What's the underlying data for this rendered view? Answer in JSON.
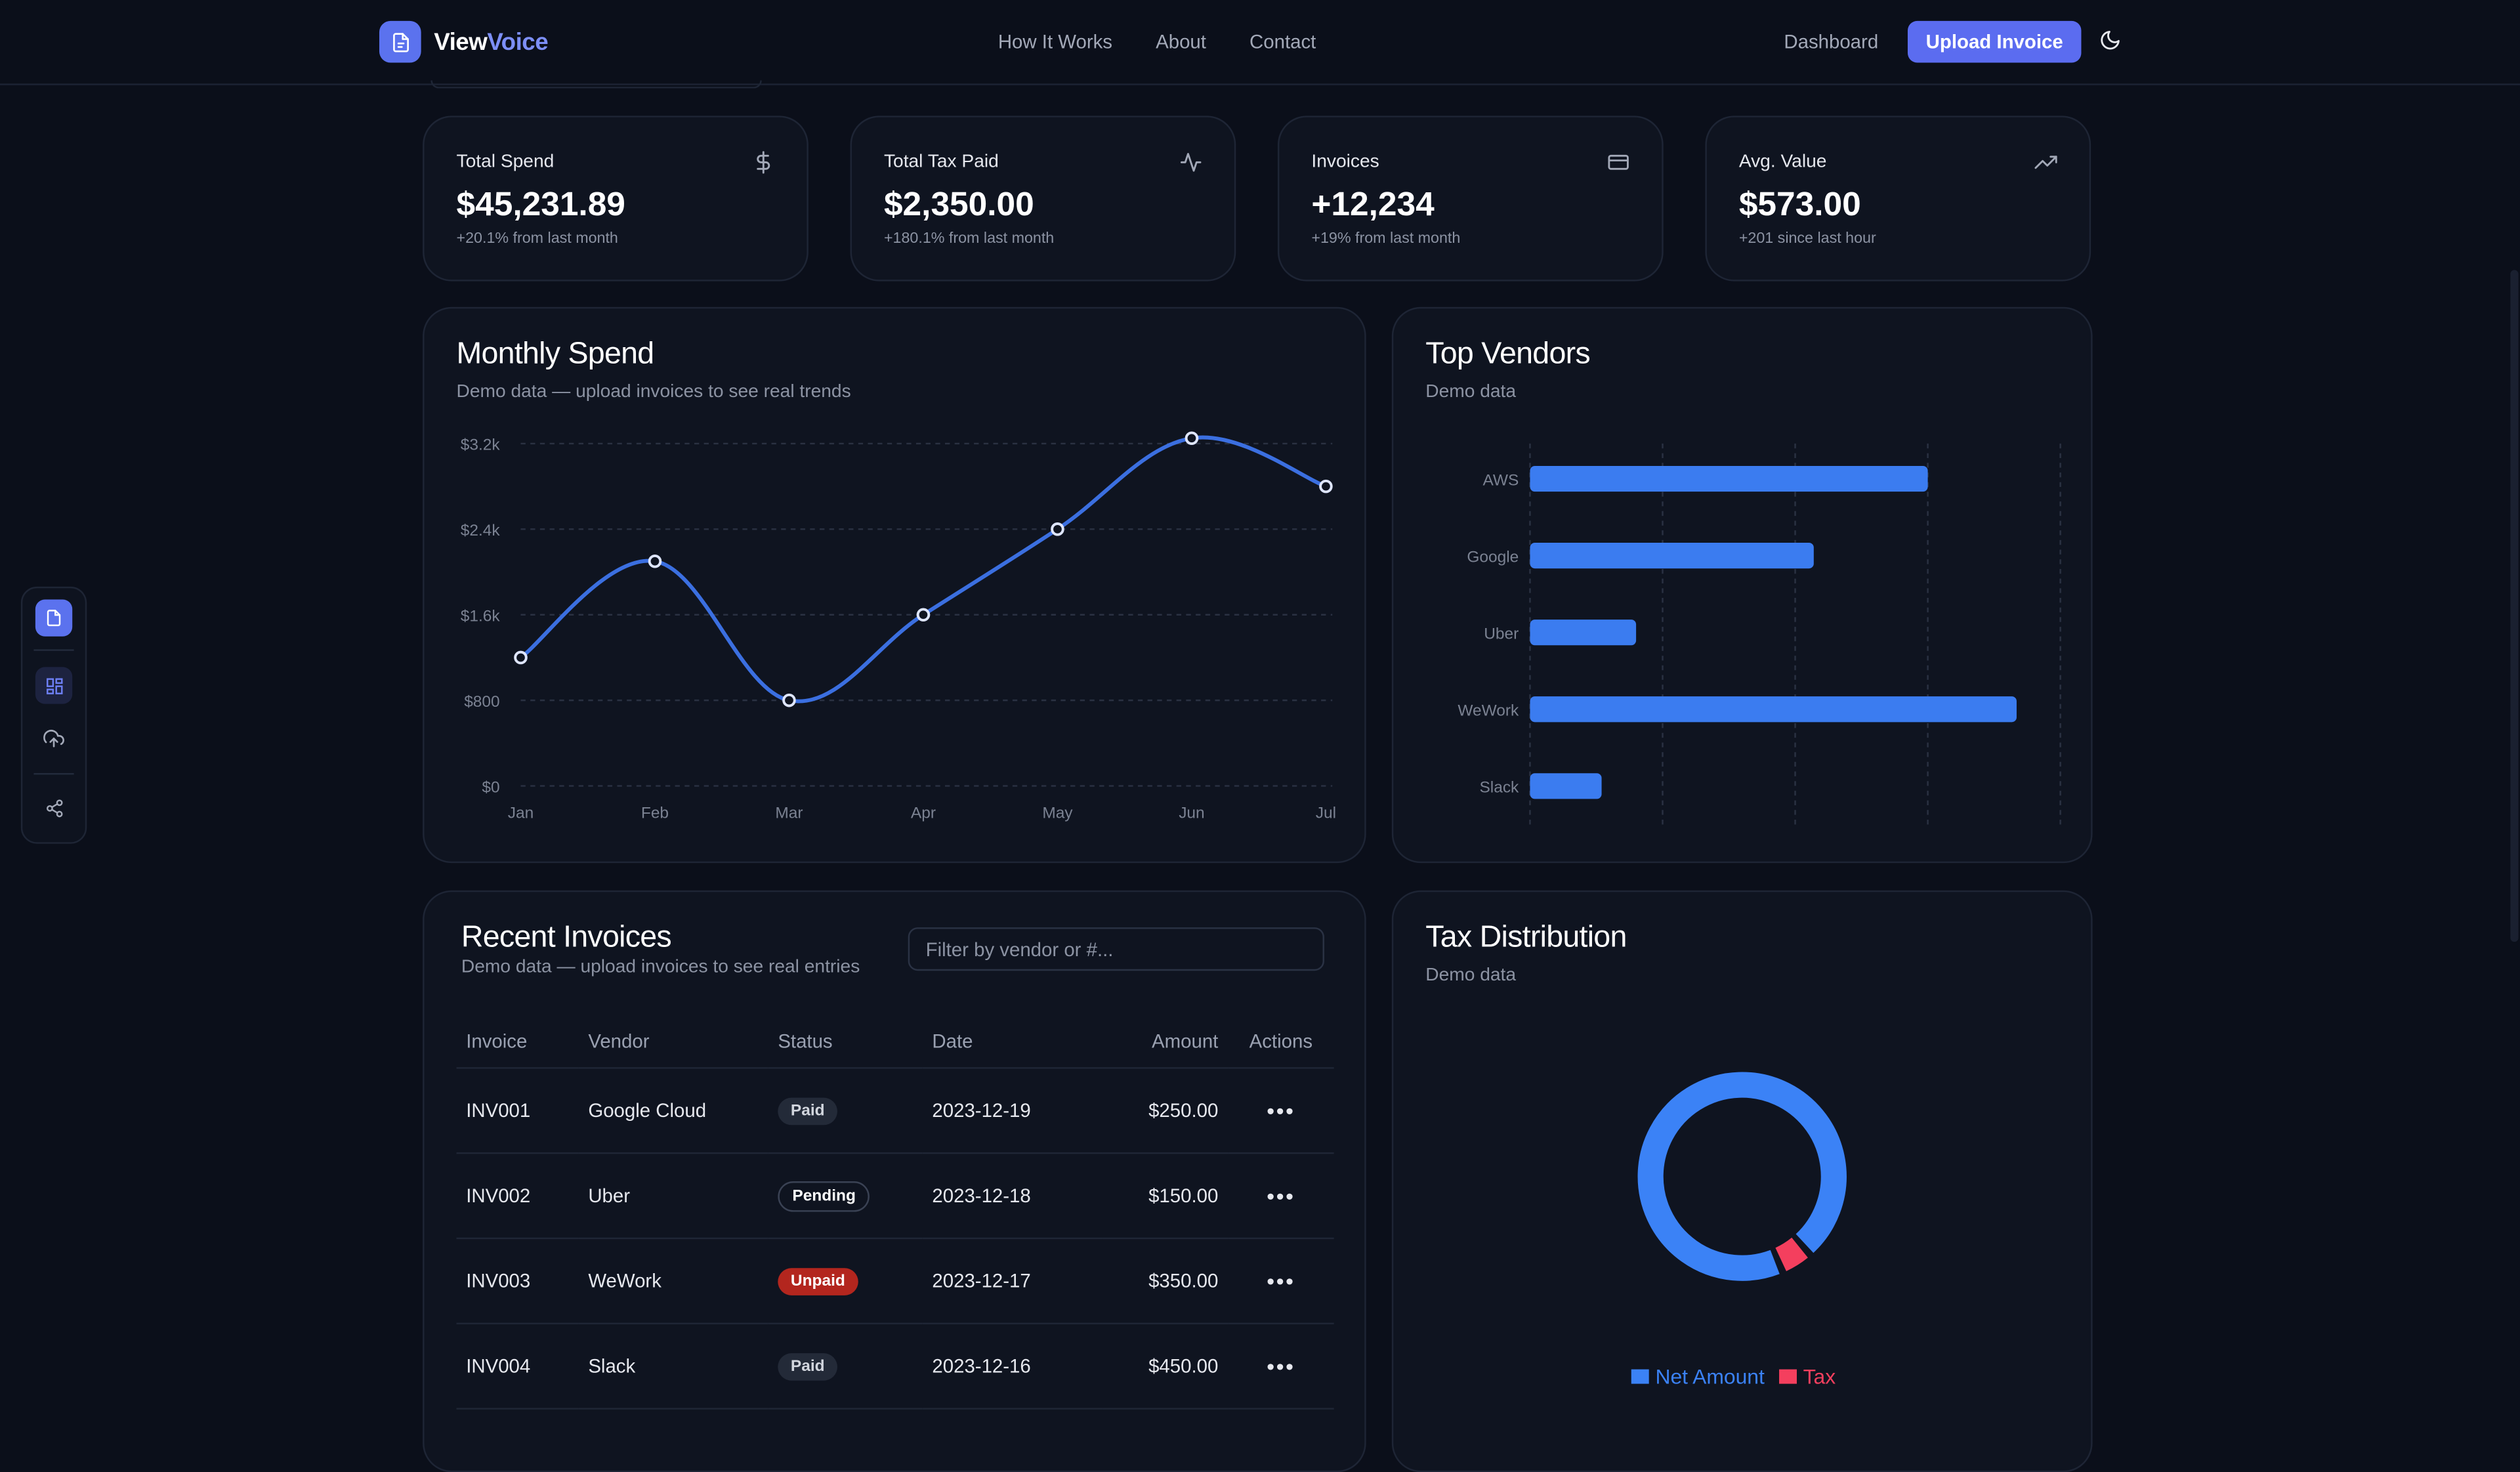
{
  "nav": {
    "brand_main": "View",
    "brand_accent": "Voice",
    "links": [
      "How It Works",
      "About",
      "Contact"
    ],
    "dashboard": "Dashboard",
    "upload_label": "Upload Invoice",
    "accent_color": "#5b6cf0"
  },
  "rail": {
    "icons": [
      "file-icon",
      "dashboard-grid-icon",
      "cloud-upload-icon",
      "share-icon"
    ],
    "active_index": 1
  },
  "stats": [
    {
      "title": "Total Spend",
      "value": "$45,231.89",
      "sub": "+20.1% from last month",
      "icon": "dollar-icon"
    },
    {
      "title": "Total Tax Paid",
      "value": "$2,350.00",
      "sub": "+180.1% from last month",
      "icon": "activity-icon"
    },
    {
      "title": "Invoices",
      "value": "+12,234",
      "sub": "+19% from last month",
      "icon": "credit-card-icon"
    },
    {
      "title": "Avg. Value",
      "value": "$573.00",
      "sub": "+201 since last hour",
      "icon": "trending-up-icon"
    }
  ],
  "monthly": {
    "title": "Monthly Spend",
    "subtitle": "Demo data — upload invoices to see real trends"
  },
  "vendors": {
    "title": "Top Vendors",
    "subtitle": "Demo data"
  },
  "invoices": {
    "title": "Recent Invoices",
    "subtitle": "Demo data — upload invoices to see real entries",
    "filter_placeholder": "Filter by vendor or #...",
    "columns": [
      "Invoice",
      "Vendor",
      "Status",
      "Date",
      "Amount",
      "Actions"
    ],
    "rows": [
      {
        "id": "INV001",
        "vendor": "Google Cloud",
        "status": "Paid",
        "date": "2023-12-19",
        "amount": "$250.00"
      },
      {
        "id": "INV002",
        "vendor": "Uber",
        "status": "Pending",
        "date": "2023-12-18",
        "amount": "$150.00"
      },
      {
        "id": "INV003",
        "vendor": "WeWork",
        "status": "Unpaid",
        "date": "2023-12-17",
        "amount": "$350.00"
      },
      {
        "id": "INV004",
        "vendor": "Slack",
        "status": "Paid",
        "date": "2023-12-16",
        "amount": "$450.00"
      }
    ]
  },
  "tax": {
    "title": "Tax Distribution",
    "subtitle": "Demo data"
  },
  "chart_data": [
    {
      "type": "line",
      "x": [
        "Jan",
        "Feb",
        "Mar",
        "Apr",
        "May",
        "Jun",
        "Jul"
      ],
      "series": [
        {
          "values": [
            1200,
            2100,
            800,
            1600,
            2400,
            3250,
            2800
          ],
          "color": "#3b6fe0"
        }
      ],
      "ylim": [
        0,
        3200
      ],
      "yticks": [
        "$0",
        "$800",
        "$1.6k",
        "$2.4k",
        "$3.2k"
      ],
      "grid": true
    },
    {
      "type": "bar",
      "orientation": "horizontal",
      "categories": [
        "AWS",
        "Google",
        "Uber",
        "WeWork",
        "Slack"
      ],
      "values": [
        3000,
        2140,
        800,
        3670,
        540
      ],
      "xlim": [
        0,
        4000
      ],
      "color": "#3b7cf0",
      "grid": true
    },
    {
      "type": "pie",
      "donut": true,
      "labels": [
        "Net Amount",
        "Tax"
      ],
      "values": [
        95,
        5
      ],
      "colors": [
        "#3b82f6",
        "#f43f5e"
      ],
      "legend": "bottom"
    }
  ]
}
